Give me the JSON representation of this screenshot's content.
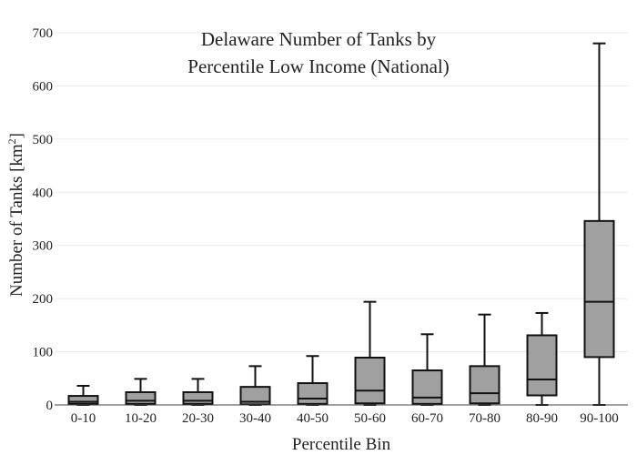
{
  "chart_data": {
    "type": "box",
    "title_lines": [
      "Delaware Number of Tanks by",
      "Percentile Low Income (National)"
    ],
    "xlabel": "Percentile Bin",
    "ylabel_text": "Number of Tanks  [km",
    "ylabel_sup": "2",
    "ylabel_close": "]",
    "ylim": [
      0,
      700
    ],
    "yticks": [
      0,
      100,
      200,
      300,
      400,
      500,
      600,
      700
    ],
    "grid": true,
    "categories": [
      "0-10",
      "10-20",
      "20-30",
      "30-40",
      "40-50",
      "50-60",
      "60-70",
      "70-80",
      "80-90",
      "90-100"
    ],
    "boxes": [
      {
        "min": 0,
        "q1": 2,
        "median": 6,
        "q3": 17,
        "max": 36
      },
      {
        "min": 0,
        "q1": 2,
        "median": 8,
        "q3": 24,
        "max": 49
      },
      {
        "min": 0,
        "q1": 2,
        "median": 8,
        "q3": 24,
        "max": 49
      },
      {
        "min": 0,
        "q1": 1,
        "median": 6,
        "q3": 34,
        "max": 73
      },
      {
        "min": 0,
        "q1": 2,
        "median": 12,
        "q3": 41,
        "max": 92
      },
      {
        "min": 0,
        "q1": 3,
        "median": 27,
        "q3": 89,
        "max": 194
      },
      {
        "min": 0,
        "q1": 2,
        "median": 14,
        "q3": 65,
        "max": 133
      },
      {
        "min": 0,
        "q1": 3,
        "median": 22,
        "q3": 73,
        "max": 170
      },
      {
        "min": 0,
        "q1": 18,
        "median": 48,
        "q3": 131,
        "max": 173
      },
      {
        "min": 0,
        "q1": 90,
        "median": 194,
        "q3": 346,
        "max": 680
      }
    ]
  }
}
